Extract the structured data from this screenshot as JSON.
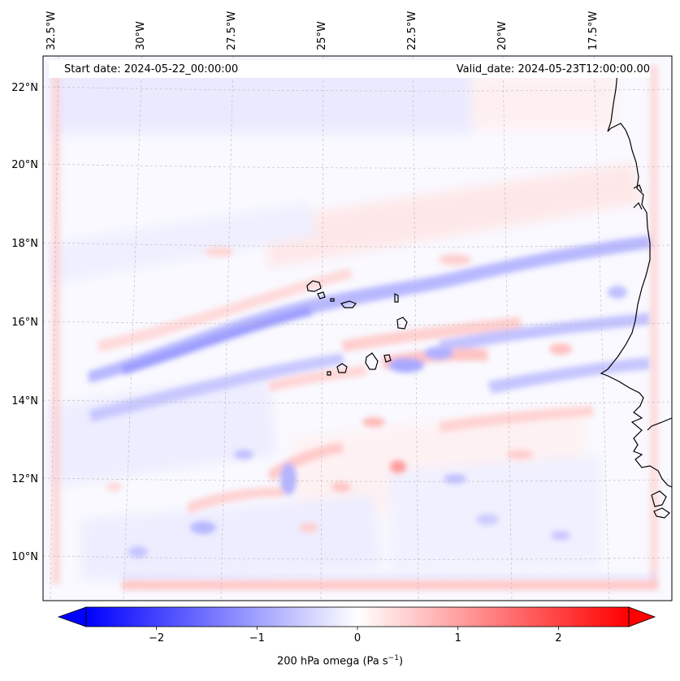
{
  "header": {
    "start_date": "Start date: 2024-05-22_00:00:00",
    "valid_date": "Valid_date: 2024-05-23T12:00:00.00"
  },
  "map": {
    "lon_labels": [
      "32.5°W",
      "30°W",
      "27.5°W",
      "25°W",
      "22.5°W",
      "20°W",
      "17.5°W"
    ],
    "lat_labels": [
      "22°N",
      "20°N",
      "18°N",
      "16°N",
      "14°N",
      "12°N",
      "10°N"
    ],
    "variable": "200 hPa omega"
  },
  "colorbar": {
    "label_text": "200 hPa omega (Pa s",
    "label_exp": "−1",
    "label_close": ")",
    "min": -2.7,
    "max": 2.7,
    "ticks": [
      "−2",
      "−1",
      "0",
      "1",
      "2"
    ],
    "tick_values": [
      -2,
      -1,
      0,
      1,
      2
    ],
    "colormap": "bwr",
    "color_neg": "#0000ff",
    "color_zero": "#ffffff",
    "color_pos": "#ff0000"
  }
}
